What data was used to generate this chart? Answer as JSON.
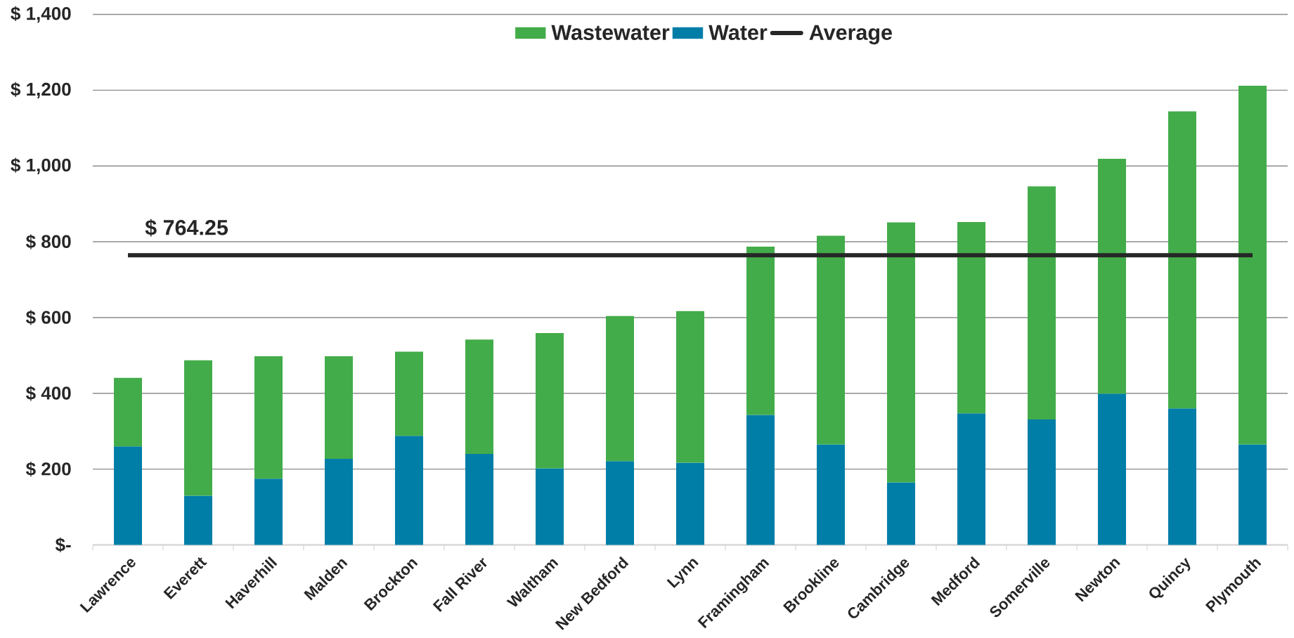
{
  "chart_data": {
    "type": "bar",
    "stacked": true,
    "categories": [
      "Lawrence",
      "Everett",
      "Haverhill",
      "Malden",
      "Brockton",
      "Fall River",
      "Waltham",
      "New Bedford",
      "Lynn",
      "Framingham",
      "Brookline",
      "Cambridge",
      "Medford",
      "Somerville",
      "Newton",
      "Quincy",
      "Plymouth"
    ],
    "series": [
      {
        "name": "Water",
        "color": "#007ea7",
        "values": [
          260,
          130,
          175,
          227,
          288,
          240,
          202,
          221,
          217,
          343,
          265,
          165,
          347,
          331,
          399,
          360,
          265
        ]
      },
      {
        "name": "Wastewater",
        "color": "#43ac4a",
        "values": [
          181,
          357,
          323,
          271,
          222,
          302,
          357,
          383,
          400,
          444,
          551,
          686,
          505,
          615,
          620,
          784,
          947
        ]
      },
      {
        "type": "line",
        "name": "Average",
        "color": "#262626",
        "values": [
          764.25,
          764.25,
          764.25,
          764.25,
          764.25,
          764.25,
          764.25,
          764.25,
          764.25,
          764.25,
          764.25,
          764.25,
          764.25,
          764.25,
          764.25,
          764.25,
          764.25
        ],
        "value_labels": [
          "$ 764.25",
          null,
          null,
          null,
          null,
          null,
          null,
          null,
          null,
          null,
          null,
          null,
          null,
          null,
          null,
          null,
          null
        ]
      }
    ],
    "ylim": [
      0,
      1400
    ],
    "yticks": [
      {
        "value": 0,
        "label": "$-"
      },
      {
        "value": 200,
        "label": "$ 200"
      },
      {
        "value": 400,
        "label": "$ 400"
      },
      {
        "value": 600,
        "label": "$ 600"
      },
      {
        "value": 800,
        "label": "$ 800"
      },
      {
        "value": 1000,
        "label": "$ 1,000"
      },
      {
        "value": 1200,
        "label": "$ 1,200"
      },
      {
        "value": 1400,
        "label": "$ 1,400"
      }
    ],
    "grid": "y",
    "legend": "top"
  }
}
